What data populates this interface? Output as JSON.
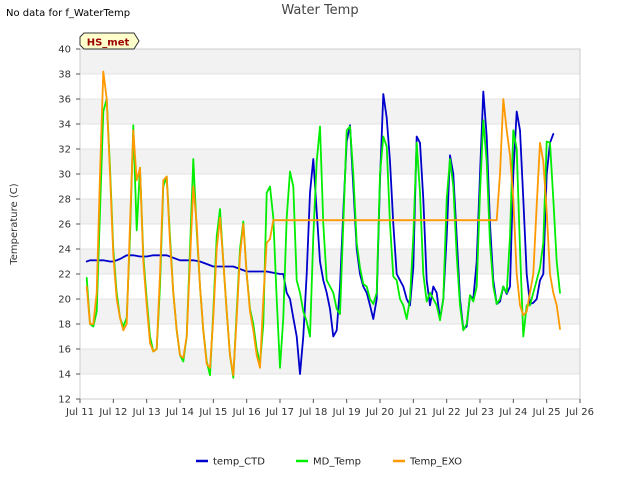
{
  "header": {
    "no_data_note": "No data for f_WaterTemp"
  },
  "chart_data": {
    "type": "line",
    "title": "Water Temp",
    "xlabel": "",
    "ylabel": "Temperature (C)",
    "xlim": [
      11,
      26
    ],
    "ylim": [
      12,
      40
    ],
    "x_ticks": [
      11,
      12,
      13,
      14,
      15,
      16,
      17,
      18,
      19,
      20,
      21,
      22,
      23,
      24,
      25,
      26
    ],
    "x_tick_labels": [
      "Jul 11",
      "Jul 12",
      "Jul 13",
      "Jul 14",
      "Jul 15",
      "Jul 16",
      "Jul 17",
      "Jul 18",
      "Jul 19",
      "Jul 20",
      "Jul 21",
      "Jul 22",
      "Jul 23",
      "Jul 24",
      "Jul 25",
      "Jul 26"
    ],
    "y_ticks": [
      12,
      14,
      16,
      18,
      20,
      22,
      24,
      26,
      28,
      30,
      32,
      34,
      36,
      38,
      40
    ],
    "y_tick_labels": [
      "12",
      "14",
      "16",
      "18",
      "20",
      "22",
      "24",
      "26",
      "28",
      "30",
      "32",
      "34",
      "36",
      "38",
      "40"
    ],
    "badge": "HS_met",
    "legend_position": "bottom-center",
    "series": [
      {
        "name": "temp_CTD",
        "color": "#0000cc",
        "x": [
          11.2,
          11.3,
          11.5,
          11.7,
          11.9,
          12.0,
          12.2,
          12.4,
          12.6,
          12.8,
          13.0,
          13.2,
          13.4,
          13.6,
          13.8,
          14.0,
          14.2,
          14.4,
          14.6,
          14.8,
          15.0,
          15.2,
          15.4,
          15.6,
          15.8,
          16.0,
          16.2,
          16.4,
          16.6,
          16.8,
          17.0,
          17.1,
          17.2,
          17.3,
          17.4,
          17.5,
          17.6,
          17.7,
          17.8,
          17.9,
          18.0,
          18.1,
          18.2,
          18.3,
          18.4,
          18.5,
          18.6,
          18.7,
          18.8,
          18.9,
          19.0,
          19.1,
          19.2,
          19.3,
          19.4,
          19.5,
          19.6,
          19.7,
          19.8,
          19.9,
          20.0,
          20.1,
          20.2,
          20.3,
          20.4,
          20.5,
          20.6,
          20.7,
          20.8,
          20.9,
          21.0,
          21.1,
          21.2,
          21.3,
          21.4,
          21.5,
          21.6,
          21.7,
          21.8,
          21.9,
          22.0,
          22.1,
          22.2,
          22.3,
          22.4,
          22.5,
          22.6,
          22.7,
          22.8,
          22.9,
          23.0,
          23.1,
          23.2,
          23.3,
          23.4,
          23.5,
          23.6,
          23.7,
          23.8,
          23.9,
          24.0,
          24.1,
          24.2,
          24.3,
          24.4,
          24.5,
          24.6,
          24.7,
          24.8,
          24.9,
          25.0,
          25.1,
          25.2
        ],
        "values": [
          23.0,
          23.1,
          23.1,
          23.1,
          23.0,
          23.0,
          23.2,
          23.5,
          23.5,
          23.4,
          23.4,
          23.5,
          23.5,
          23.5,
          23.3,
          23.1,
          23.1,
          23.1,
          23.0,
          22.8,
          22.6,
          22.6,
          22.6,
          22.6,
          22.4,
          22.2,
          22.2,
          22.2,
          22.2,
          22.1,
          22.0,
          22.0,
          20.5,
          20.0,
          18.5,
          17.0,
          14.0,
          17.0,
          22.0,
          28.5,
          31.2,
          27.0,
          23.0,
          21.5,
          20.5,
          19.2,
          17.0,
          17.5,
          21.0,
          27.0,
          32.6,
          33.9,
          29.0,
          24.0,
          22.0,
          21.0,
          20.5,
          19.5,
          18.4,
          20.0,
          29.5,
          36.4,
          34.5,
          31.0,
          26.0,
          22.0,
          21.5,
          21.0,
          20.0,
          19.5,
          22.5,
          33.0,
          32.5,
          28.0,
          21.5,
          19.5,
          21.0,
          20.5,
          18.4,
          20.0,
          25.0,
          31.5,
          30.0,
          25.0,
          20.0,
          17.6,
          17.8,
          20.3,
          20.0,
          23.0,
          30.0,
          36.6,
          33.0,
          26.0,
          21.5,
          19.6,
          19.8,
          21.0,
          20.4,
          21.0,
          30.0,
          35.0,
          33.5,
          28.0,
          22.0,
          19.6,
          19.7,
          20.0,
          21.5,
          22.0,
          30.0,
          32.5,
          33.2
        ]
      },
      {
        "name": "MD_Temp",
        "color": "#00ee00",
        "x": [
          11.2,
          11.3,
          11.4,
          11.5,
          11.6,
          11.7,
          11.8,
          11.9,
          12.0,
          12.1,
          12.2,
          12.3,
          12.4,
          12.5,
          12.6,
          12.7,
          12.8,
          12.9,
          13.0,
          13.1,
          13.2,
          13.3,
          13.4,
          13.5,
          13.6,
          13.7,
          13.8,
          13.9,
          14.0,
          14.1,
          14.2,
          14.3,
          14.4,
          14.5,
          14.6,
          14.7,
          14.8,
          14.9,
          15.0,
          15.1,
          15.2,
          15.3,
          15.4,
          15.5,
          15.6,
          15.7,
          15.8,
          15.9,
          16.0,
          16.1,
          16.2,
          16.3,
          16.4,
          16.5,
          16.6,
          16.7,
          16.8,
          16.9,
          17.0,
          17.1,
          17.2,
          17.3,
          17.4,
          17.5,
          17.6,
          17.7,
          17.8,
          17.9,
          18.0,
          18.1,
          18.2,
          18.3,
          18.4,
          18.5,
          18.6,
          18.7,
          18.8,
          18.9,
          19.0,
          19.1,
          19.2,
          19.3,
          19.4,
          19.5,
          19.6,
          19.7,
          19.8,
          19.9,
          20.0,
          20.1,
          20.2,
          20.3,
          20.4,
          20.5,
          20.6,
          20.7,
          20.8,
          20.9,
          21.0,
          21.1,
          21.2,
          21.3,
          21.4,
          21.5,
          21.6,
          21.7,
          21.8,
          21.9,
          22.0,
          22.1,
          22.2,
          22.3,
          22.4,
          22.5,
          22.6,
          22.7,
          22.8,
          22.9,
          23.0,
          23.1,
          23.2,
          23.3,
          23.4,
          23.5,
          23.6,
          23.7,
          23.8,
          23.9,
          24.0,
          24.1,
          24.2,
          24.3,
          24.4,
          24.5,
          24.6,
          24.7,
          24.8,
          24.9,
          25.0,
          25.1,
          25.2,
          25.3,
          25.4
        ],
        "values": [
          21.7,
          18.0,
          17.8,
          19.0,
          27.0,
          35.0,
          36.0,
          30.5,
          24.0,
          20.5,
          18.5,
          17.8,
          18.5,
          25.0,
          33.9,
          25.5,
          30.5,
          23.5,
          20.0,
          17.0,
          15.8,
          16.0,
          21.0,
          29.0,
          29.8,
          25.0,
          20.5,
          17.5,
          15.5,
          15.0,
          17.0,
          24.0,
          31.2,
          25.5,
          21.0,
          17.5,
          15.0,
          13.9,
          19.0,
          25.0,
          27.2,
          23.0,
          19.0,
          15.5,
          13.7,
          19.0,
          24.0,
          26.2,
          22.0,
          19.2,
          18.0,
          16.0,
          14.8,
          18.0,
          28.5,
          29.0,
          26.5,
          20.0,
          14.5,
          18.5,
          26.5,
          30.2,
          29.0,
          21.5,
          20.5,
          19.0,
          18.2,
          17.0,
          25.0,
          31.0,
          33.8,
          26.0,
          21.5,
          21.0,
          20.5,
          19.2,
          18.8,
          26.0,
          33.5,
          33.8,
          30.0,
          24.5,
          22.5,
          21.2,
          21.0,
          20.0,
          19.6,
          20.5,
          30.0,
          33.0,
          32.2,
          26.0,
          21.8,
          21.5,
          20.0,
          19.5,
          18.4,
          20.0,
          25.0,
          32.5,
          28.5,
          22.0,
          19.8,
          20.5,
          20.0,
          19.5,
          18.3,
          20.0,
          28.0,
          31.2,
          29.0,
          23.5,
          19.5,
          17.5,
          18.0,
          20.3,
          19.8,
          21.0,
          28.5,
          34.3,
          31.0,
          24.5,
          21.0,
          19.6,
          20.0,
          21.0,
          20.5,
          25.0,
          33.5,
          32.0,
          24.0,
          17.0,
          19.5,
          19.5,
          20.5,
          21.5,
          22.5,
          24.5,
          32.6,
          32.5,
          28.0,
          23.0,
          20.5
        ]
      },
      {
        "name": "Temp_EXO",
        "color": "#ff9900",
        "x": [
          11.2,
          11.3,
          11.4,
          11.5,
          11.6,
          11.7,
          11.8,
          11.9,
          12.0,
          12.1,
          12.2,
          12.3,
          12.4,
          12.5,
          12.6,
          12.7,
          12.8,
          12.9,
          13.0,
          13.1,
          13.2,
          13.3,
          13.4,
          13.5,
          13.6,
          13.7,
          13.8,
          13.9,
          14.0,
          14.1,
          14.2,
          14.3,
          14.4,
          14.5,
          14.6,
          14.7,
          14.8,
          14.9,
          15.0,
          15.1,
          15.2,
          15.3,
          15.4,
          15.5,
          15.6,
          15.7,
          15.8,
          15.9,
          16.0,
          16.1,
          16.2,
          16.3,
          16.4,
          16.5,
          16.6,
          16.7,
          16.8,
          16.9,
          17.0,
          17.1,
          17.2,
          17.3,
          17.5,
          18.0,
          19.0,
          20.0,
          21.0,
          22.0,
          23.0,
          23.1,
          23.2,
          23.3,
          23.4,
          23.5,
          23.6,
          23.7,
          23.8,
          23.9,
          24.0,
          24.1,
          24.2,
          24.3,
          24.4,
          24.5,
          24.6,
          24.7,
          24.8,
          24.9,
          25.0,
          25.1,
          25.2,
          25.3,
          25.4
        ],
        "values": [
          21.0,
          18.0,
          18.0,
          20.5,
          30.0,
          38.2,
          36.0,
          30.0,
          23.5,
          20.0,
          18.5,
          17.5,
          18.0,
          26.0,
          33.5,
          29.5,
          30.5,
          23.0,
          19.5,
          16.5,
          15.8,
          16.0,
          22.0,
          29.5,
          29.8,
          24.5,
          20.5,
          17.5,
          15.5,
          15.3,
          17.0,
          23.0,
          29.0,
          26.0,
          21.0,
          17.5,
          14.8,
          14.5,
          18.5,
          24.0,
          26.5,
          23.0,
          19.0,
          15.5,
          13.9,
          18.5,
          23.5,
          26.0,
          22.0,
          19.0,
          17.5,
          15.5,
          14.5,
          20.0,
          24.5,
          24.8,
          26.3,
          26.3,
          26.3,
          26.3,
          26.3,
          26.3,
          26.3,
          26.3,
          26.3,
          26.3,
          26.3,
          26.3,
          26.3,
          26.3,
          26.3,
          26.3,
          26.3,
          26.3,
          30.0,
          36.0,
          33.5,
          31.5,
          28.0,
          22.0,
          19.5,
          18.7,
          19.0,
          20.5,
          22.0,
          27.5,
          32.5,
          31.0,
          27.0,
          22.0,
          20.5,
          19.5,
          17.6
        ]
      }
    ]
  }
}
